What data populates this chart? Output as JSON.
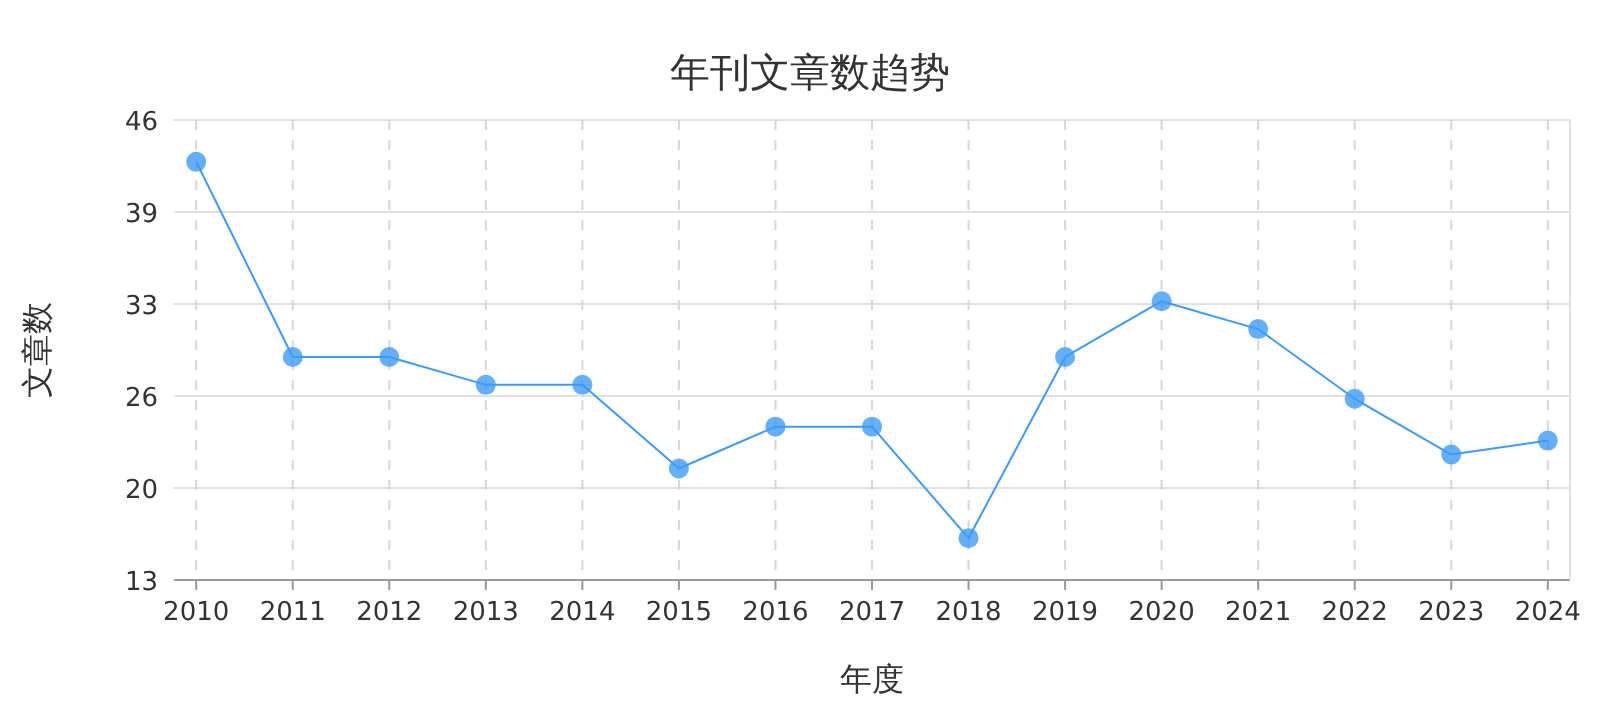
{
  "chart_data": {
    "type": "line",
    "title": "年刊文章数趋势",
    "xlabel": "年度",
    "ylabel": "文章数",
    "categories": [
      "2010",
      "2011",
      "2012",
      "2013",
      "2014",
      "2015",
      "2016",
      "2017",
      "2018",
      "2019",
      "2020",
      "2021",
      "2022",
      "2023",
      "2024"
    ],
    "series": [
      {
        "color": "#3d9bf5",
        "values": [
          43,
          29,
          29,
          27,
          27,
          21,
          24,
          24,
          16,
          29,
          33,
          31,
          26,
          22,
          23
        ]
      }
    ],
    "ylim": [
      13,
      46
    ],
    "yticks": [
      13,
      {
        "value": 19.6,
        "label": "20"
      },
      {
        "value": 26.2,
        "label": "26"
      },
      {
        "value": 32.8,
        "label": "33"
      },
      {
        "value": 39.4,
        "label": "39"
      },
      46
    ],
    "grid": true,
    "marker": "circle",
    "line_style": "solid"
  }
}
